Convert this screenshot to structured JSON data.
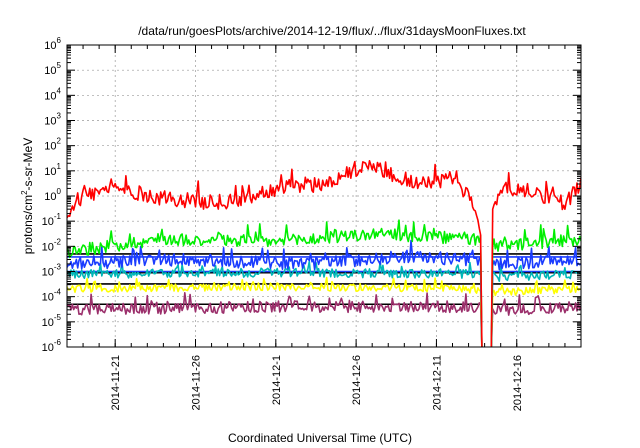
{
  "chart_data": {
    "type": "line",
    "title": "/data/run/goesPlots/archive/2014-12-19/flux/../flux/31daysMoonFluxes.txt",
    "xlabel": "Coordinated Universal Time (UTC)",
    "ylabel": {
      "pre": "protons/cm",
      "sup": "2",
      "post": "-s-sr-MeV"
    },
    "y_scale": "log",
    "ylim": [
      1e-06,
      1000000.0
    ],
    "y_ticks": [
      {
        "base": "10",
        "exp": "-6",
        "value": 1e-06
      },
      {
        "base": "10",
        "exp": "-5",
        "value": 1e-05
      },
      {
        "base": "10",
        "exp": "-4",
        "value": 0.0001
      },
      {
        "base": "10",
        "exp": "-3",
        "value": 0.001
      },
      {
        "base": "10",
        "exp": "-2",
        "value": 0.01
      },
      {
        "base": "10",
        "exp": "-1",
        "value": 0.1
      },
      {
        "base": "10",
        "exp": "0",
        "value": 1
      },
      {
        "base": "10",
        "exp": "1",
        "value": 10
      },
      {
        "base": "10",
        "exp": "2",
        "value": 100
      },
      {
        "base": "10",
        "exp": "3",
        "value": 1000
      },
      {
        "base": "10",
        "exp": "4",
        "value": 10000
      },
      {
        "base": "10",
        "exp": "5",
        "value": 100000
      },
      {
        "base": "10",
        "exp": "6",
        "value": 1000000
      }
    ],
    "xlim": [
      "2014-11-18",
      "2014-12-20"
    ],
    "x_ticks": [
      "2014-11-21",
      "2014-11-26",
      "2014-12-1",
      "2014-12-6",
      "2014-12-11",
      "2014-12-16"
    ],
    "x_tick_dates": [
      "2014-11-21",
      "2014-11-26",
      "2014-12-01",
      "2014-12-06",
      "2014-12-11",
      "2014-12-16"
    ],
    "grid": true,
    "dropout": {
      "start": "2014-12-13T18:00",
      "end": "2014-12-14T12:00"
    },
    "series": [
      {
        "color": "#ff0000",
        "approx_level": 1.2,
        "spread_decades": 0.6,
        "approx_points": [
          [
            "2014-11-18",
            0.2
          ],
          [
            "2014-11-19",
            1.0
          ],
          [
            "2014-11-21",
            2.0
          ],
          [
            "2014-11-24",
            0.8
          ],
          [
            "2014-11-28",
            0.5
          ],
          [
            "2014-12-01",
            2.0
          ],
          [
            "2014-12-04",
            3.0
          ],
          [
            "2014-12-07",
            20.0
          ],
          [
            "2014-12-08",
            8.0
          ],
          [
            "2014-12-10",
            3.0
          ],
          [
            "2014-12-12",
            5.0
          ],
          [
            "2014-12-13",
            1.0
          ],
          [
            "2014-12-14",
            0.02
          ],
          [
            "2014-12-15",
            2.0
          ],
          [
            "2014-12-17",
            1.5
          ],
          [
            "2014-12-19",
            0.5
          ],
          [
            "2014-12-20",
            3.0
          ]
        ]
      },
      {
        "color": "#00ee00",
        "approx_level": 0.015,
        "spread_decades": 0.5,
        "approx_points": [
          [
            "2014-11-18",
            0.006
          ],
          [
            "2014-11-24",
            0.02
          ],
          [
            "2014-12-01",
            0.015
          ],
          [
            "2014-12-07",
            0.03
          ],
          [
            "2014-12-13",
            0.02
          ],
          [
            "2014-12-15",
            0.01
          ],
          [
            "2014-12-20",
            0.02
          ]
        ]
      },
      {
        "color": "#1a3cff",
        "approx_level": 0.0025,
        "spread_decades": 0.5,
        "approx_points": [
          [
            "2014-11-18",
            0.002
          ],
          [
            "2014-11-25",
            0.003
          ],
          [
            "2014-12-03",
            0.002
          ],
          [
            "2014-12-09",
            0.004
          ],
          [
            "2014-12-13",
            0.003
          ],
          [
            "2014-12-15",
            0.002
          ],
          [
            "2014-12-20",
            0.003
          ]
        ]
      },
      {
        "color": "#00b7b7",
        "approx_level": 0.0008,
        "spread_decades": 0.35,
        "approx_points": [
          [
            "2014-11-18",
            0.0008
          ],
          [
            "2014-12-01",
            0.0009
          ],
          [
            "2014-12-13",
            0.0008
          ],
          [
            "2014-12-15",
            0.0006
          ],
          [
            "2014-12-20",
            0.0008
          ]
        ]
      },
      {
        "color": "#ffff00",
        "approx_level": 0.0002,
        "spread_decades": 0.3,
        "approx_points": [
          [
            "2014-11-18",
            0.0002
          ],
          [
            "2014-12-01",
            0.00025
          ],
          [
            "2014-12-13",
            0.0002
          ],
          [
            "2014-12-15",
            0.00015
          ],
          [
            "2014-12-20",
            0.0002
          ]
        ]
      },
      {
        "color": "#9b2f6b",
        "approx_level": 4e-05,
        "spread_decades": 0.45,
        "approx_points": [
          [
            "2014-11-18",
            3e-05
          ],
          [
            "2014-12-01",
            4e-05
          ],
          [
            "2014-12-13",
            4e-05
          ],
          [
            "2014-12-15",
            3e-05
          ],
          [
            "2014-12-20",
            4e-05
          ]
        ]
      }
    ],
    "baseline_lines": [
      {
        "color": "#000000",
        "value": 0.005
      },
      {
        "color": "#000000",
        "value": 0.0009
      },
      {
        "color": "#000000",
        "value": 0.00032
      },
      {
        "color": "#000000",
        "value": 5e-05
      },
      {
        "color": "#1a3cff",
        "value": 0.0038
      },
      {
        "color": "#1a3cff",
        "value": 0.001
      }
    ]
  }
}
